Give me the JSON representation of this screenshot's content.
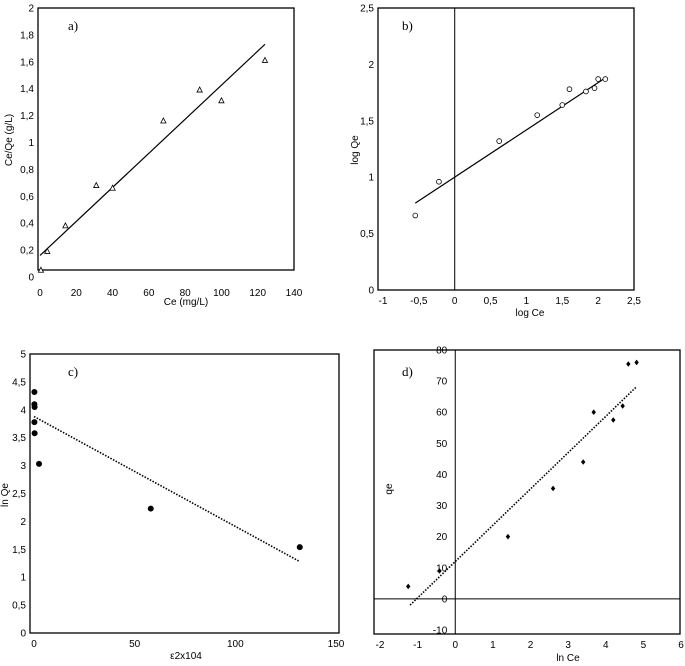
{
  "chart_data": [
    {
      "type": "scatter",
      "panel_label": "a)",
      "xlabel": "Ce (mg/L)",
      "ylabel": "Ce/Qe (g/L)",
      "xlim": [
        0,
        140
      ],
      "ylim": [
        0,
        2
      ],
      "xticks": [
        "0",
        "20",
        "40",
        "60",
        "80",
        "100",
        "120",
        "140"
      ],
      "yticks": [
        "0",
        "0,2",
        "0,4",
        "0,6",
        "0,8",
        "1",
        "1,2",
        "1,4",
        "1,6",
        "1,8",
        "2"
      ],
      "marker": "triangle-open",
      "points": [
        [
          0.5,
          0.05
        ],
        [
          4,
          0.19
        ],
        [
          14,
          0.38
        ],
        [
          31,
          0.68
        ],
        [
          40,
          0.66
        ],
        [
          68,
          1.16
        ],
        [
          88,
          1.39
        ],
        [
          100,
          1.31
        ],
        [
          124,
          1.61
        ]
      ],
      "trendline": {
        "style": "solid",
        "from": [
          0,
          0.16
        ],
        "to": [
          124,
          1.73
        ]
      }
    },
    {
      "type": "scatter",
      "panel_label": "b)",
      "xlabel": "log Ce",
      "ylabel": "log Qe",
      "xlim": [
        -1,
        2.5
      ],
      "ylim": [
        0,
        2.5
      ],
      "xticks": [
        "-1",
        "-0,5",
        "0",
        "0,5",
        "1",
        "1,5",
        "2",
        "2,5"
      ],
      "yticks": [
        "0",
        "0,5",
        "1",
        "1,5",
        "2",
        "2,5"
      ],
      "marker": "circle-open",
      "points": [
        [
          -0.55,
          0.66
        ],
        [
          -0.22,
          0.96
        ],
        [
          0.62,
          1.32
        ],
        [
          1.15,
          1.55
        ],
        [
          1.5,
          1.64
        ],
        [
          1.6,
          1.78
        ],
        [
          1.83,
          1.76
        ],
        [
          1.95,
          1.79
        ],
        [
          2.0,
          1.87
        ],
        [
          2.1,
          1.87
        ]
      ],
      "trendline": {
        "style": "solid",
        "from": [
          -0.55,
          0.77
        ],
        "to": [
          2.1,
          1.88
        ]
      }
    },
    {
      "type": "scatter",
      "panel_label": "c)",
      "xlabel": "ε2x104",
      "ylabel": "ln Qe",
      "xlim": [
        0,
        150
      ],
      "ylim": [
        0,
        5
      ],
      "xticks": [
        "0",
        "50",
        "100",
        "150"
      ],
      "yticks": [
        "0",
        "0,5",
        "1",
        "1,5",
        "2",
        "2,5",
        "3",
        "3,5",
        "4",
        "4,5",
        "5"
      ],
      "marker": "circle-filled",
      "points": [
        [
          0.2,
          4.32
        ],
        [
          0.2,
          4.1
        ],
        [
          0.3,
          4.05
        ],
        [
          0.2,
          3.78
        ],
        [
          0.3,
          3.58
        ],
        [
          2.5,
          3.03
        ],
        [
          58,
          2.23
        ],
        [
          132,
          1.54
        ]
      ],
      "trendline": {
        "style": "dotted",
        "from": [
          0,
          3.88
        ],
        "to": [
          132,
          1.28
        ]
      }
    },
    {
      "type": "scatter",
      "panel_label": "d)",
      "xlabel": "ln Ce",
      "ylabel": "qe",
      "xlim": [
        -2,
        6
      ],
      "ylim": [
        -10,
        80
      ],
      "xticks": [
        "-2",
        "-1",
        "0",
        "1",
        "2",
        "3",
        "4",
        "5",
        "6"
      ],
      "yticks": [
        "-10",
        "0",
        "10",
        "20",
        "30",
        "40",
        "50",
        "60",
        "70",
        "80"
      ],
      "marker": "diamond-filled",
      "points": [
        [
          -1.25,
          4
        ],
        [
          -0.42,
          9
        ],
        [
          1.4,
          20
        ],
        [
          2.6,
          35.5
        ],
        [
          3.4,
          44
        ],
        [
          3.68,
          60
        ],
        [
          4.2,
          57.5
        ],
        [
          4.45,
          62
        ],
        [
          4.6,
          75.5
        ],
        [
          4.82,
          76
        ]
      ],
      "trendline": {
        "style": "dotted",
        "from": [
          -1.2,
          -2
        ],
        "to": [
          4.8,
          68
        ]
      }
    }
  ]
}
